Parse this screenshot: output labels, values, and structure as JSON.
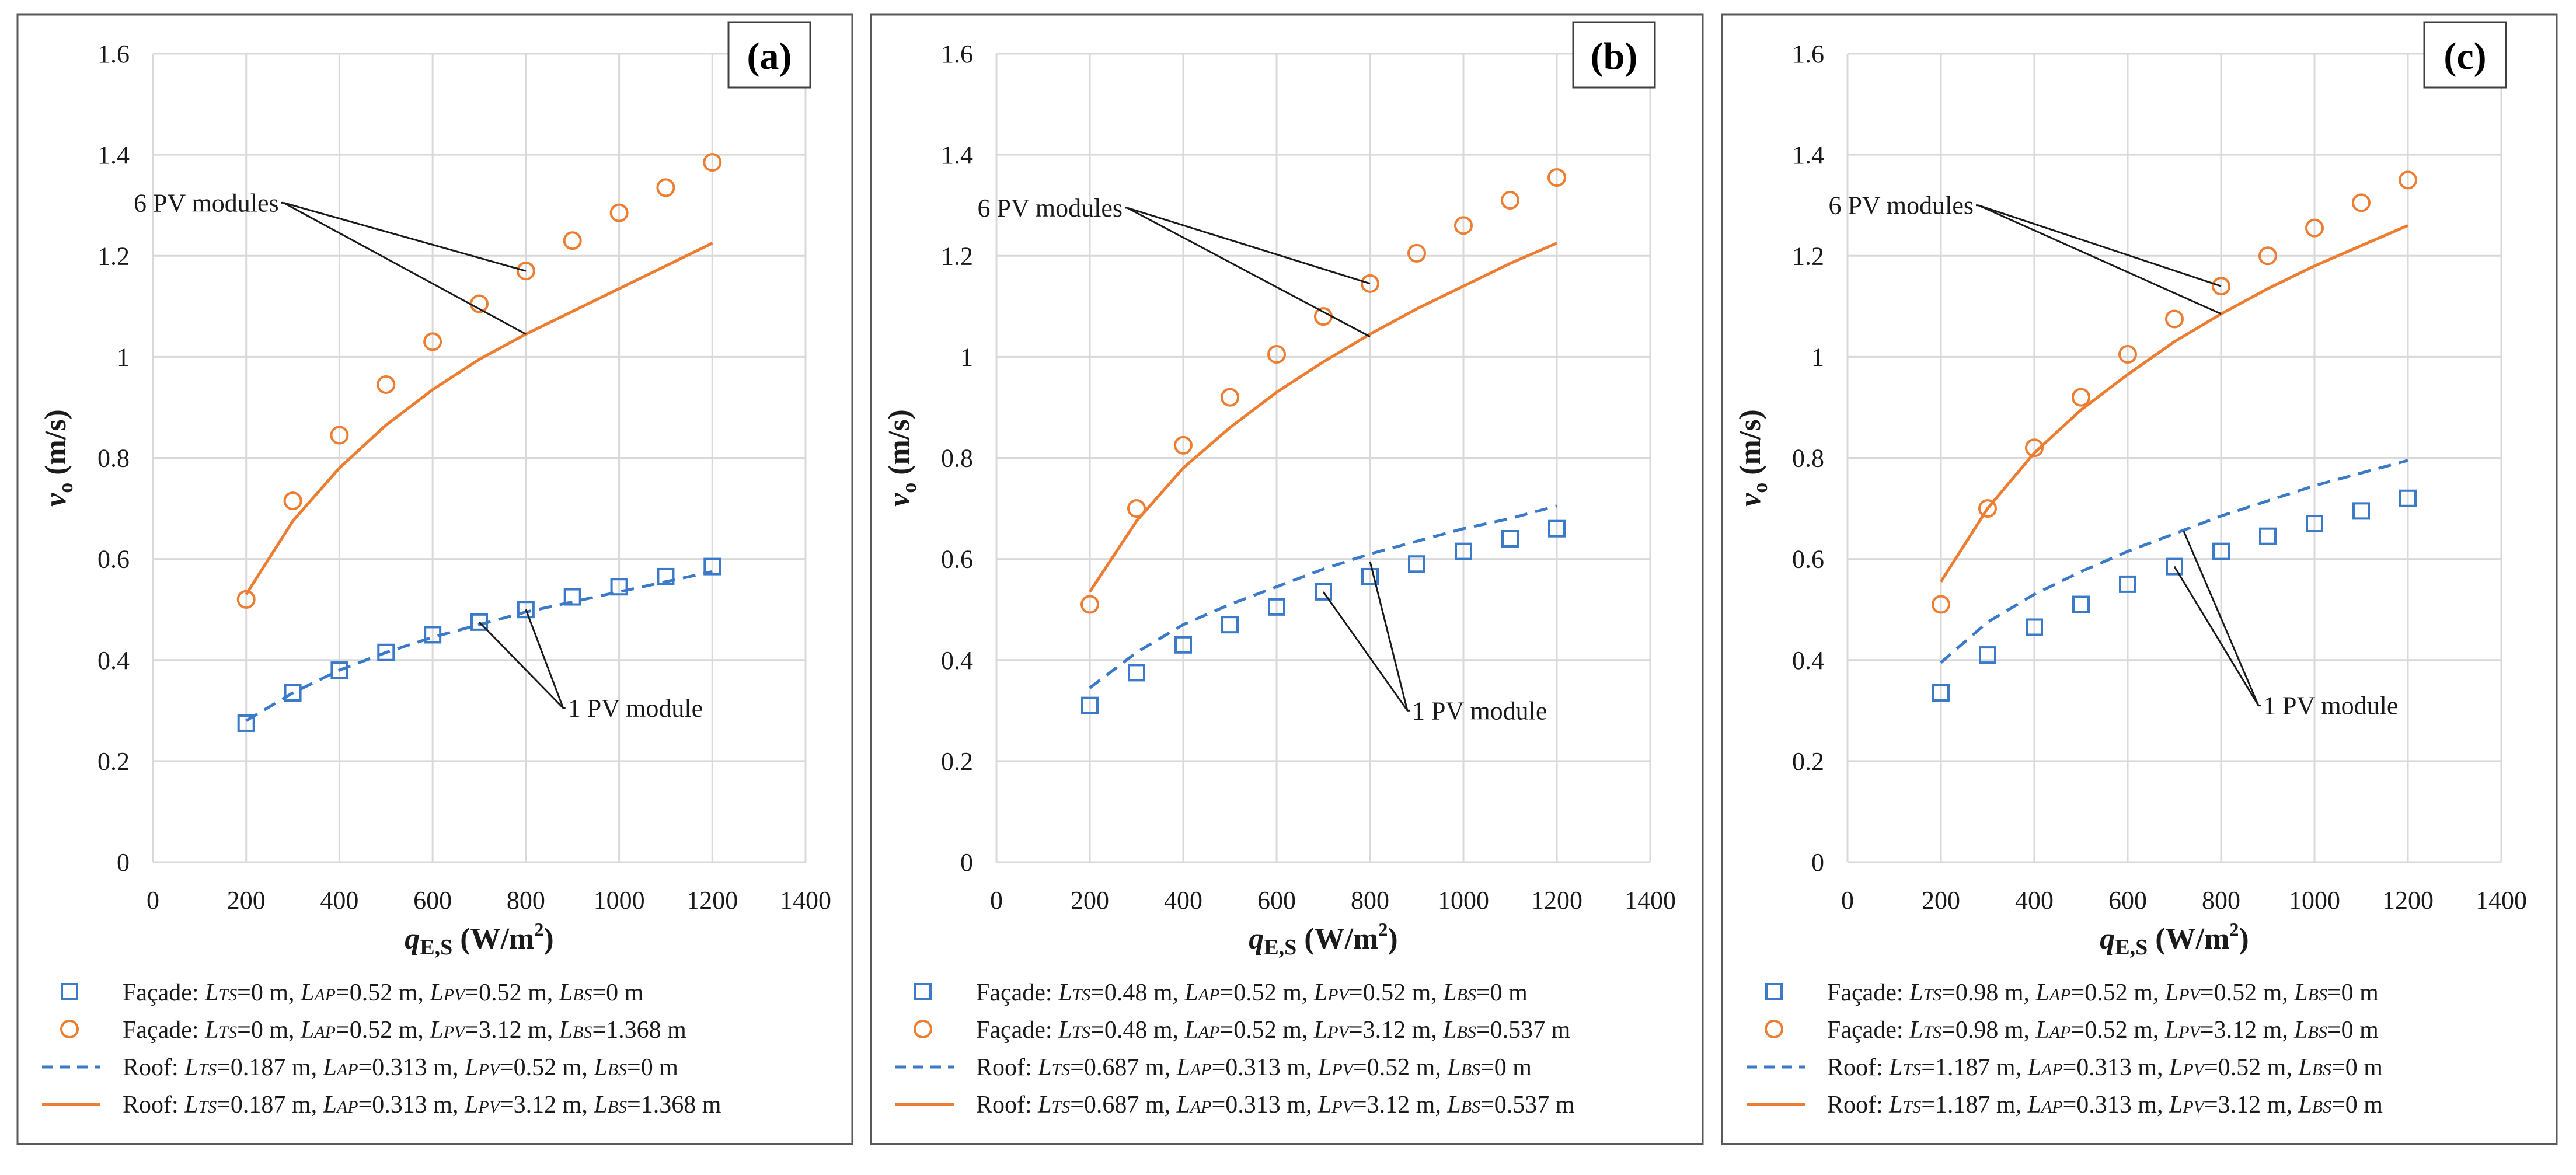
{
  "colors": {
    "blue": "#3a7ac9",
    "orange": "#ed7d31",
    "grid": "#d9d9d9",
    "frame": "#595959"
  },
  "chart_data": [
    {
      "type": "scatter",
      "panel_label": "(a)",
      "ylabel_main": "v",
      "ylabel_sub": "o",
      "ylabel_unit": " (m/s)",
      "xlabel_main": "q",
      "xlabel_sub": "E,S",
      "xlabel_unit": " (W/m",
      "xlabel_sup": "2",
      "xlabel_end": ")",
      "xlim": [
        0,
        1400
      ],
      "ylim": [
        0,
        1.6
      ],
      "xticks": [
        0,
        200,
        400,
        600,
        800,
        1000,
        1200,
        1400
      ],
      "yticks": [
        0,
        0.2,
        0.4,
        0.6,
        0.8,
        1,
        1.2,
        1.4,
        1.6
      ],
      "ytick_labels": [
        "0",
        "0.2",
        "0.4",
        "0.6",
        "0.8",
        "1",
        "1.2",
        "1.4",
        "1.6"
      ],
      "x": [
        200,
        300,
        400,
        500,
        600,
        700,
        800,
        900,
        1000,
        1100,
        1200
      ],
      "series": [
        {
          "kind": "square",
          "color": "blue",
          "values": [
            0.275,
            0.335,
            0.38,
            0.415,
            0.45,
            0.475,
            0.5,
            0.525,
            0.545,
            0.565,
            0.585
          ],
          "legend": {
            "prefix": "Façade: ",
            "parts": [
              [
                "L",
                "TS",
                "=0 m, "
              ],
              [
                "L",
                "AP",
                "=0.52 m, "
              ],
              [
                "L",
                "PV",
                "=0.52 m, "
              ],
              [
                "L",
                "BS",
                "=0 m"
              ]
            ]
          }
        },
        {
          "kind": "circle",
          "color": "orange",
          "values": [
            0.52,
            0.715,
            0.845,
            0.945,
            1.03,
            1.105,
            1.17,
            1.23,
            1.285,
            1.335,
            1.385
          ],
          "legend": {
            "prefix": "Façade: ",
            "parts": [
              [
                "L",
                "TS",
                "=0 m, "
              ],
              [
                "L",
                "AP",
                "=0.52 m, "
              ],
              [
                "L",
                "PV",
                "=3.12 m, "
              ],
              [
                "L",
                "BS",
                "=1.368 m"
              ]
            ]
          }
        },
        {
          "kind": "dashed",
          "color": "blue",
          "values": [
            0.28,
            0.335,
            0.38,
            0.415,
            0.445,
            0.47,
            0.495,
            0.515,
            0.535,
            0.555,
            0.575
          ],
          "legend": {
            "prefix": "Roof: ",
            "parts": [
              [
                "L",
                "TS",
                "=0.187 m, "
              ],
              [
                "L",
                "AP",
                "=0.313 m, "
              ],
              [
                "L",
                "PV",
                "=0.52 m, "
              ],
              [
                "L",
                "BS",
                "=0 m"
              ]
            ]
          }
        },
        {
          "kind": "solid",
          "color": "orange",
          "values": [
            0.53,
            0.675,
            0.78,
            0.865,
            0.935,
            0.995,
            1.045,
            1.09,
            1.135,
            1.18,
            1.225
          ],
          "legend": {
            "prefix": "Roof: ",
            "parts": [
              [
                "L",
                "TS",
                "=0.187 m, "
              ],
              [
                "L",
                "AP",
                "=0.313 m, "
              ],
              [
                "L",
                "PV",
                "=3.12 m, "
              ],
              [
                "L",
                "BS",
                "=1.368 m"
              ]
            ]
          }
        }
      ],
      "annotations": [
        {
          "text": "6 PV modules",
          "text_at": [
            265,
            1.305
          ],
          "anchor": "end",
          "elbow": [
            280,
            1.305
          ],
          "targets": [
            [
              800,
              1.17
            ],
            [
              800,
              1.045
            ]
          ]
        },
        {
          "text": "1 PV module",
          "text_at": [
            895,
            0.305
          ],
          "anchor": "start",
          "elbow": [
            880,
            0.305
          ],
          "targets": [
            [
              700,
              0.475
            ],
            [
              800,
              0.5
            ]
          ]
        }
      ]
    },
    {
      "type": "scatter",
      "panel_label": "(b)",
      "ylabel_main": "v",
      "ylabel_sub": "o",
      "ylabel_unit": " (m/s)",
      "xlabel_main": "q",
      "xlabel_sub": "E,S",
      "xlabel_unit": " (W/m",
      "xlabel_sup": "2",
      "xlabel_end": ")",
      "xlim": [
        0,
        1400
      ],
      "ylim": [
        0,
        1.6
      ],
      "xticks": [
        0,
        200,
        400,
        600,
        800,
        1000,
        1200,
        1400
      ],
      "yticks": [
        0,
        0.2,
        0.4,
        0.6,
        0.8,
        1,
        1.2,
        1.4,
        1.6
      ],
      "ytick_labels": [
        "0",
        "0.2",
        "0.4",
        "0.6",
        "0.8",
        "1",
        "1.2",
        "1.4",
        "1.6"
      ],
      "x": [
        200,
        300,
        400,
        500,
        600,
        700,
        800,
        900,
        1000,
        1100,
        1200
      ],
      "series": [
        {
          "kind": "square",
          "color": "blue",
          "values": [
            0.31,
            0.375,
            0.43,
            0.47,
            0.505,
            0.535,
            0.565,
            0.59,
            0.615,
            0.64,
            0.66
          ],
          "legend": {
            "prefix": "Façade: ",
            "parts": [
              [
                "L",
                "TS",
                "=0.48 m, "
              ],
              [
                "L",
                "AP",
                "=0.52 m, "
              ],
              [
                "L",
                "PV",
                "=0.52 m, "
              ],
              [
                "L",
                "BS",
                "=0 m"
              ]
            ]
          }
        },
        {
          "kind": "circle",
          "color": "orange",
          "values": [
            0.51,
            0.7,
            0.825,
            0.92,
            1.005,
            1.08,
            1.145,
            1.205,
            1.26,
            1.31,
            1.355
          ],
          "legend": {
            "prefix": "Façade: ",
            "parts": [
              [
                "L",
                "TS",
                "=0.48 m, "
              ],
              [
                "L",
                "AP",
                "=0.52 m, "
              ],
              [
                "L",
                "PV",
                "=3.12 m, "
              ],
              [
                "L",
                "BS",
                "=0.537 m"
              ]
            ]
          }
        },
        {
          "kind": "dashed",
          "color": "blue",
          "values": [
            0.345,
            0.415,
            0.47,
            0.51,
            0.545,
            0.58,
            0.61,
            0.635,
            0.66,
            0.68,
            0.705
          ],
          "legend": {
            "prefix": "Roof: ",
            "parts": [
              [
                "L",
                "TS",
                "=0.687 m, "
              ],
              [
                "L",
                "AP",
                "=0.313 m, "
              ],
              [
                "L",
                "PV",
                "=0.52 m, "
              ],
              [
                "L",
                "BS",
                "=0 m"
              ]
            ]
          }
        },
        {
          "kind": "solid",
          "color": "orange",
          "values": [
            0.535,
            0.675,
            0.78,
            0.86,
            0.93,
            0.99,
            1.045,
            1.095,
            1.14,
            1.185,
            1.225
          ],
          "legend": {
            "prefix": "Roof: ",
            "parts": [
              [
                "L",
                "TS",
                "=0.687 m, "
              ],
              [
                "L",
                "AP",
                "=0.313 m, "
              ],
              [
                "L",
                "PV",
                "=3.12 m, "
              ],
              [
                "L",
                "BS",
                "=0.537 m"
              ]
            ]
          }
        }
      ],
      "annotations": [
        {
          "text": "6 PV modules",
          "text_at": [
            265,
            1.295
          ],
          "anchor": "end",
          "elbow": [
            280,
            1.295
          ],
          "targets": [
            [
              800,
              1.145
            ],
            [
              800,
              1.04
            ]
          ]
        },
        {
          "text": "1 PV module",
          "text_at": [
            895,
            0.3
          ],
          "anchor": "start",
          "elbow": [
            880,
            0.3
          ],
          "targets": [
            [
              700,
              0.535
            ],
            [
              800,
              0.595
            ]
          ]
        }
      ]
    },
    {
      "type": "scatter",
      "panel_label": "(c)",
      "ylabel_main": "v",
      "ylabel_sub": "o",
      "ylabel_unit": " (m/s)",
      "xlabel_main": "q",
      "xlabel_sub": "E,S",
      "xlabel_unit": " (W/m",
      "xlabel_sup": "2",
      "xlabel_end": ")",
      "xlim": [
        0,
        1400
      ],
      "ylim": [
        0,
        1.6
      ],
      "xticks": [
        0,
        200,
        400,
        600,
        800,
        1000,
        1200,
        1400
      ],
      "yticks": [
        0,
        0.2,
        0.4,
        0.6,
        0.8,
        1,
        1.2,
        1.4,
        1.6
      ],
      "ytick_labels": [
        "0",
        "0.2",
        "0.4",
        "0.6",
        "0.8",
        "1",
        "1.2",
        "1.4",
        "1.6"
      ],
      "x": [
        200,
        300,
        400,
        500,
        600,
        700,
        800,
        900,
        1000,
        1100,
        1200
      ],
      "series": [
        {
          "kind": "square",
          "color": "blue",
          "values": [
            0.335,
            0.41,
            0.465,
            0.51,
            0.55,
            0.585,
            0.615,
            0.645,
            0.67,
            0.695,
            0.72
          ],
          "legend": {
            "prefix": "Façade: ",
            "parts": [
              [
                "L",
                "TS",
                "=0.98 m, "
              ],
              [
                "L",
                "AP",
                "=0.52 m, "
              ],
              [
                "L",
                "PV",
                "=0.52 m, "
              ],
              [
                "L",
                "BS",
                "=0 m"
              ]
            ]
          }
        },
        {
          "kind": "circle",
          "color": "orange",
          "values": [
            0.51,
            0.7,
            0.82,
            0.92,
            1.005,
            1.075,
            1.14,
            1.2,
            1.255,
            1.305,
            1.35
          ],
          "legend": {
            "prefix": "Façade: ",
            "parts": [
              [
                "L",
                "TS",
                "=0.98 m, "
              ],
              [
                "L",
                "AP",
                "=0.52 m, "
              ],
              [
                "L",
                "PV",
                "=3.12 m, "
              ],
              [
                "L",
                "BS",
                "=0 m"
              ]
            ]
          }
        },
        {
          "kind": "dashed",
          "color": "blue",
          "values": [
            0.395,
            0.475,
            0.53,
            0.575,
            0.615,
            0.65,
            0.685,
            0.715,
            0.745,
            0.77,
            0.795
          ],
          "legend": {
            "prefix": "Roof: ",
            "parts": [
              [
                "L",
                "TS",
                "=1.187 m, "
              ],
              [
                "L",
                "AP",
                "=0.313 m, "
              ],
              [
                "L",
                "PV",
                "=0.52 m, "
              ],
              [
                "L",
                "BS",
                "=0 m"
              ]
            ]
          }
        },
        {
          "kind": "solid",
          "color": "orange",
          "values": [
            0.555,
            0.7,
            0.81,
            0.895,
            0.965,
            1.03,
            1.085,
            1.135,
            1.18,
            1.22,
            1.26
          ],
          "legend": {
            "prefix": "Roof: ",
            "parts": [
              [
                "L",
                "TS",
                "=1.187 m, "
              ],
              [
                "L",
                "AP",
                "=0.313 m, "
              ],
              [
                "L",
                "PV",
                "=3.12 m, "
              ],
              [
                "L",
                "BS",
                "=0 m"
              ]
            ]
          }
        }
      ],
      "annotations": [
        {
          "text": "6 PV modules",
          "text_at": [
            265,
            1.3
          ],
          "anchor": "end",
          "elbow": [
            280,
            1.3
          ],
          "targets": [
            [
              800,
              1.14
            ],
            [
              800,
              1.085
            ]
          ]
        },
        {
          "text": "1 PV module",
          "text_at": [
            895,
            0.31
          ],
          "anchor": "start",
          "elbow": [
            880,
            0.31
          ],
          "targets": [
            [
              700,
              0.585
            ],
            [
              720,
              0.655
            ]
          ]
        }
      ]
    }
  ]
}
